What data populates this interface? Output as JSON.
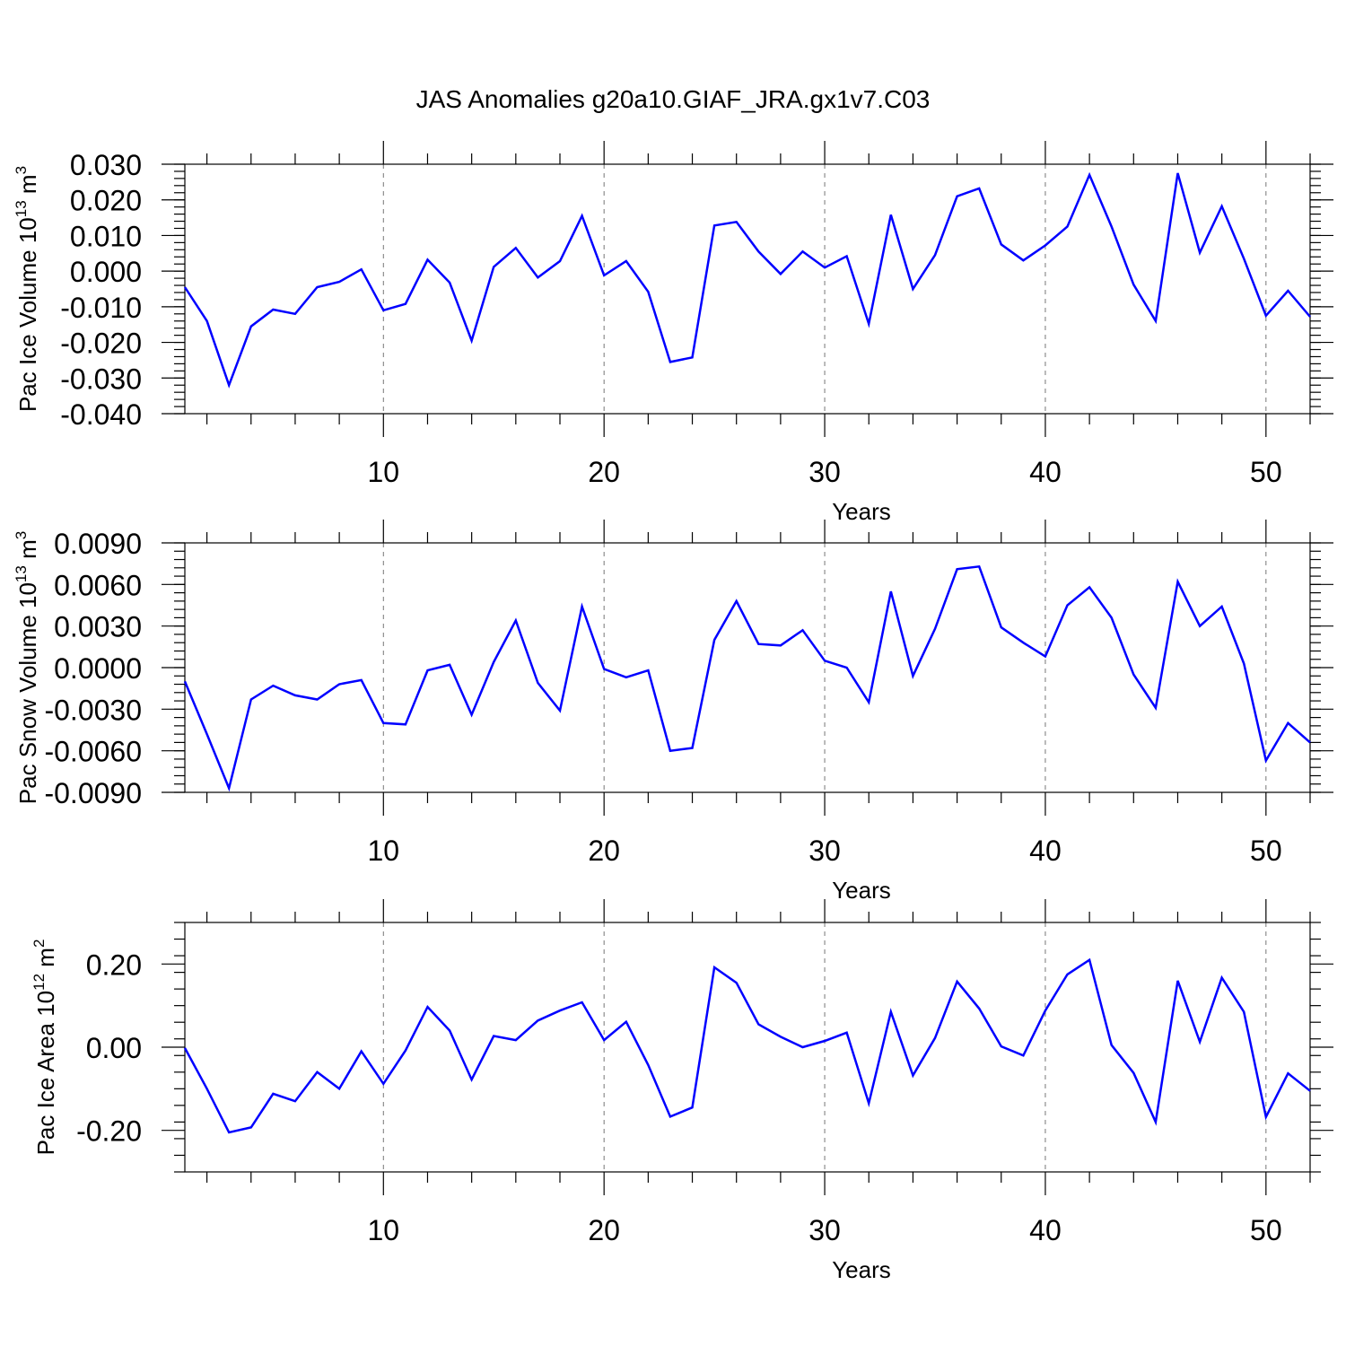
{
  "title": "JAS Anomalies g20a10.GIAF_JRA.gx1v7.C03",
  "chart_data": [
    {
      "type": "line",
      "name": "pac-ice-volume",
      "ylabel_main": "Pac Ice Volume 10",
      "ylabel_exp": "13",
      "ylabel_unit": " m",
      "ylabel_unit_exp": "3",
      "xlabel": "Years",
      "xlim": [
        1,
        52
      ],
      "ylim": [
        -0.04,
        0.03
      ],
      "xticks": [
        10,
        20,
        30,
        40,
        50
      ],
      "xtick_labels": [
        "10",
        "20",
        "30",
        "40",
        "50"
      ],
      "yticks": [
        -0.04,
        -0.03,
        -0.02,
        -0.01,
        0.0,
        0.01,
        0.02,
        0.03
      ],
      "ytick_labels": [
        "-0.040",
        "-0.030",
        "-0.020",
        "-0.010",
        "0.000",
        "0.010",
        "0.020",
        "0.030"
      ],
      "color": "#0000ff",
      "x": [
        1,
        2,
        3,
        4,
        5,
        6,
        7,
        8,
        9,
        10,
        11,
        12,
        13,
        14,
        15,
        16,
        17,
        18,
        19,
        20,
        21,
        22,
        23,
        24,
        25,
        26,
        27,
        28,
        29,
        30,
        31,
        32,
        33,
        34,
        35,
        36,
        37,
        38,
        39,
        40,
        41,
        42,
        43,
        44,
        45,
        46,
        47,
        48,
        49,
        50,
        51,
        52
      ],
      "y": [
        -0.0045,
        -0.014,
        -0.032,
        -0.0155,
        -0.0108,
        -0.012,
        -0.0045,
        -0.003,
        0.0005,
        -0.011,
        -0.0092,
        0.0032,
        -0.0032,
        -0.0195,
        0.0012,
        0.0065,
        -0.0018,
        0.0028,
        0.0155,
        -0.0012,
        0.0028,
        -0.0058,
        -0.0255,
        -0.0242,
        0.0128,
        0.0138,
        0.0055,
        -0.0008,
        0.0055,
        0.001,
        0.0042,
        -0.0148,
        0.0158,
        -0.005,
        0.0045,
        0.021,
        0.0232,
        0.0075,
        0.003,
        0.0072,
        0.0125,
        0.027,
        0.0125,
        -0.0038,
        -0.014,
        0.0275,
        0.0052,
        0.0182,
        0.0035,
        -0.0125,
        -0.0055,
        -0.0128
      ]
    },
    {
      "type": "line",
      "name": "pac-snow-volume",
      "ylabel_main": "Pac Snow Volume 10",
      "ylabel_exp": "13",
      "ylabel_unit": " m",
      "ylabel_unit_exp": "3",
      "xlabel": "Years",
      "xlim": [
        1,
        52
      ],
      "ylim": [
        -0.009,
        0.009
      ],
      "xticks": [
        10,
        20,
        30,
        40,
        50
      ],
      "xtick_labels": [
        "10",
        "20",
        "30",
        "40",
        "50"
      ],
      "yticks": [
        -0.009,
        -0.006,
        -0.003,
        0.0,
        0.003,
        0.006,
        0.009
      ],
      "ytick_labels": [
        "-0.0090",
        "-0.0060",
        "-0.0030",
        "0.0000",
        "0.0030",
        "0.0060",
        "0.0090"
      ],
      "color": "#0000ff",
      "x": [
        1,
        2,
        3,
        4,
        5,
        6,
        7,
        8,
        9,
        10,
        11,
        12,
        13,
        14,
        15,
        16,
        17,
        18,
        19,
        20,
        21,
        22,
        23,
        24,
        25,
        26,
        27,
        28,
        29,
        30,
        31,
        32,
        33,
        34,
        35,
        36,
        37,
        38,
        39,
        40,
        41,
        42,
        43,
        44,
        45,
        46,
        47,
        48,
        49,
        50,
        51,
        52
      ],
      "y": [
        -0.001,
        -0.0048,
        -0.0087,
        -0.0023,
        -0.0013,
        -0.002,
        -0.0023,
        -0.0012,
        -0.0009,
        -0.004,
        -0.0041,
        -0.0002,
        0.0002,
        -0.0034,
        0.0004,
        0.0034,
        -0.0011,
        -0.0031,
        0.0044,
        -0.0001,
        -0.0007,
        -0.0002,
        -0.006,
        -0.0058,
        0.002,
        0.0048,
        0.0017,
        0.0016,
        0.0027,
        0.0005,
        0.0,
        -0.0025,
        0.0055,
        -0.0006,
        0.0028,
        0.0071,
        0.0073,
        0.0029,
        0.0018,
        0.0008,
        0.0045,
        0.0058,
        0.0036,
        -0.0005,
        -0.0029,
        0.0062,
        0.003,
        0.0044,
        0.0003,
        -0.0067,
        -0.004,
        -0.0054
      ]
    },
    {
      "type": "line",
      "name": "pac-ice-area",
      "ylabel_main": "Pac Ice Area 10",
      "ylabel_exp": "12",
      "ylabel_unit": " m",
      "ylabel_unit_exp": "2",
      "xlabel": "Years",
      "xlim": [
        1,
        52
      ],
      "ylim": [
        -0.3,
        0.3
      ],
      "xticks": [
        10,
        20,
        30,
        40,
        50
      ],
      "xtick_labels": [
        "10",
        "20",
        "30",
        "40",
        "50"
      ],
      "yticks": [
        -0.2,
        0.0,
        0.2
      ],
      "ytick_labels": [
        "-0.20",
        "0.00",
        "0.20"
      ],
      "color": "#0000ff",
      "x": [
        1,
        2,
        3,
        4,
        5,
        6,
        7,
        8,
        9,
        10,
        11,
        12,
        13,
        14,
        15,
        16,
        17,
        18,
        19,
        20,
        21,
        22,
        23,
        24,
        25,
        26,
        27,
        28,
        29,
        30,
        31,
        32,
        33,
        34,
        35,
        36,
        37,
        38,
        39,
        40,
        41,
        42,
        43,
        44,
        45,
        46,
        47,
        48,
        49,
        50,
        51,
        52
      ],
      "y": [
        -0.002,
        -0.1,
        -0.205,
        -0.193,
        -0.112,
        -0.13,
        -0.06,
        -0.1,
        -0.01,
        -0.088,
        -0.008,
        0.097,
        0.04,
        -0.078,
        0.027,
        0.017,
        0.064,
        0.088,
        0.108,
        0.017,
        0.061,
        -0.043,
        -0.167,
        -0.145,
        0.192,
        0.155,
        0.055,
        0.025,
        0.0,
        0.015,
        0.035,
        -0.135,
        0.085,
        -0.068,
        0.022,
        0.158,
        0.093,
        0.002,
        -0.02,
        0.088,
        0.175,
        0.21,
        0.005,
        -0.062,
        -0.18,
        0.16,
        0.013,
        0.167,
        0.085,
        -0.168,
        -0.063,
        -0.105
      ]
    }
  ]
}
